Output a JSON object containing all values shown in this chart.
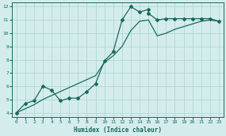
{
  "xlabel": "Humidex (Indice chaleur)",
  "bg_color": "#d4edec",
  "grid_color": "#b0d8d4",
  "line_color": "#1a6b5a",
  "xlim": [
    -0.5,
    23.5
  ],
  "ylim": [
    3.7,
    12.3
  ],
  "xticks": [
    0,
    1,
    2,
    3,
    4,
    5,
    6,
    7,
    8,
    9,
    10,
    11,
    12,
    13,
    14,
    15,
    16,
    17,
    18,
    19,
    20,
    21,
    22,
    23
  ],
  "yticks": [
    4,
    5,
    6,
    7,
    8,
    9,
    10,
    11,
    12
  ],
  "line1_x": [
    0,
    1,
    2,
    3,
    4,
    5,
    6,
    7,
    8,
    9,
    10,
    11,
    12,
    13,
    14,
    15,
    15,
    16,
    17,
    18,
    19,
    20,
    21,
    22,
    23
  ],
  "line1_y": [
    4,
    4.7,
    4.9,
    6.0,
    5.7,
    4.9,
    5.1,
    5.1,
    5.6,
    6.2,
    7.9,
    8.6,
    11.0,
    12.0,
    11.6,
    11.8,
    11.5,
    11.0,
    11.1,
    11.1,
    11.1,
    11.1,
    11.1,
    11.1,
    10.9
  ],
  "line2_x": [
    0,
    1,
    2,
    3,
    4,
    5,
    6,
    7,
    8,
    9,
    10,
    11,
    12,
    13,
    14,
    15,
    16,
    17,
    18,
    19,
    20,
    21,
    22,
    23
  ],
  "line2_y": [
    4.0,
    4.3,
    4.6,
    5.0,
    5.3,
    5.6,
    5.9,
    6.2,
    6.5,
    6.8,
    7.8,
    8.3,
    9.0,
    10.2,
    10.9,
    11.0,
    9.8,
    10.0,
    10.3,
    10.5,
    10.7,
    10.9,
    11.0,
    10.9
  ],
  "marker": "D",
  "marker_size": 2.0,
  "linewidth": 0.9
}
